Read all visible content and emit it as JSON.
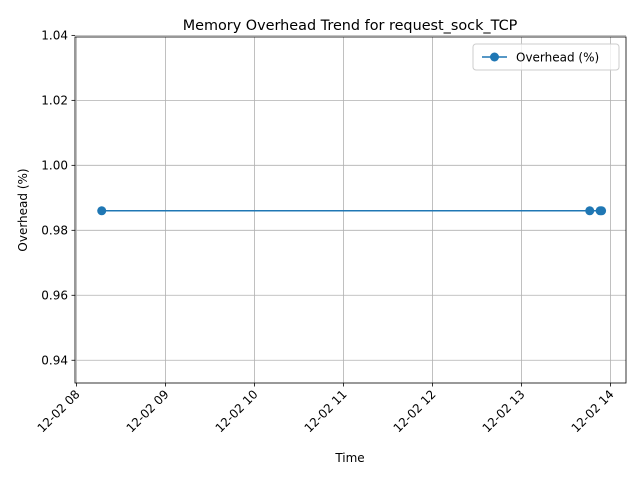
{
  "chart_data": {
    "type": "line",
    "title": "Memory Overhead Trend for request_sock_TCP",
    "xlabel": "Time",
    "ylabel": "Overhead (%)",
    "x_axis": {
      "type": "time",
      "min": "2023-12-02T08:00",
      "max": "2023-12-02T14:00",
      "ticks": [
        {
          "value": "2023-12-02T08:00",
          "label": "12-02 08"
        },
        {
          "value": "2023-12-02T09:00",
          "label": "12-02 09"
        },
        {
          "value": "2023-12-02T10:00",
          "label": "12-02 10"
        },
        {
          "value": "2023-12-02T11:00",
          "label": "12-02 11"
        },
        {
          "value": "2023-12-02T12:00",
          "label": "12-02 12"
        },
        {
          "value": "2023-12-02T13:00",
          "label": "12-02 13"
        },
        {
          "value": "2023-12-02T14:00",
          "label": "12-02 14"
        }
      ]
    },
    "y_axis": {
      "min": 0.933,
      "max": 1.0395,
      "ticks": [
        {
          "value": 0.94,
          "label": "0.94"
        },
        {
          "value": 0.96,
          "label": "0.96"
        },
        {
          "value": 0.98,
          "label": "0.98"
        },
        {
          "value": 1.0,
          "label": "1.00"
        },
        {
          "value": 1.02,
          "label": "1.02"
        },
        {
          "value": 1.04,
          "label": "1.04"
        }
      ]
    },
    "grid": true,
    "legend_position": "top-right",
    "series": [
      {
        "name": "Overhead (%)",
        "color": "#1f77b4",
        "marker": "circle",
        "points": [
          {
            "x": "2023-12-02T08:17",
            "y": 0.986
          },
          {
            "x": "2023-12-02T13:46",
            "y": 0.986
          },
          {
            "x": "2023-12-02T13:53",
            "y": 0.986
          },
          {
            "x": "2023-12-02T13:54",
            "y": 0.986
          }
        ]
      }
    ]
  }
}
